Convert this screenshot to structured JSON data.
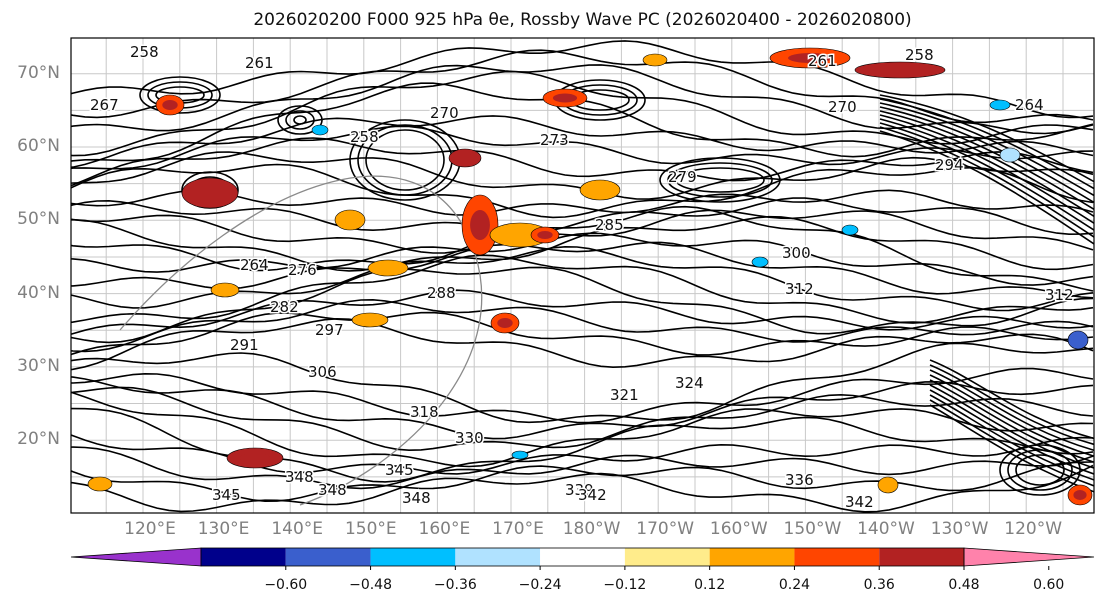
{
  "title": "2026020200 F000 925 hPa θe, Rossby Wave PC (2026020400 - 2026020800)",
  "latitude_labels": [
    "70°N",
    "60°N",
    "50°N",
    "40°N",
    "30°N",
    "20°N"
  ],
  "longitude_labels": [
    "120°E",
    "130°E",
    "140°E",
    "150°E",
    "160°E",
    "170°E",
    "180°W",
    "170°W",
    "160°W",
    "150°W",
    "140°W",
    "130°W",
    "120°W"
  ],
  "contour_labels": [
    "258",
    "261",
    "264",
    "267",
    "270",
    "273",
    "276",
    "279",
    "282",
    "285",
    "288",
    "291",
    "294",
    "297",
    "300",
    "306",
    "312",
    "318",
    "321",
    "324",
    "330",
    "336",
    "339",
    "342",
    "345",
    "348"
  ],
  "colorbar": {
    "ticks": [
      "−0.60",
      "−0.48",
      "−0.36",
      "−0.24",
      "−0.12",
      "0.12",
      "0.24",
      "0.36",
      "0.48",
      "0.60"
    ],
    "colors": [
      "#9932cc",
      "#00008b",
      "#3a5fcd",
      "#00bfff",
      "#b0e2ff",
      "#ffffff",
      "#ffec8b",
      "#ffa500",
      "#ff4500",
      "#b22222",
      "#ff82ab"
    ]
  }
}
